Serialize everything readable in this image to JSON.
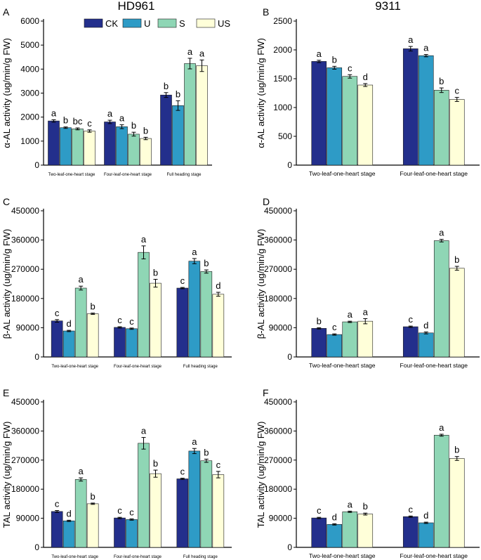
{
  "legend": {
    "entries": [
      {
        "label": "CK",
        "color": "#232F8C"
      },
      {
        "label": "U",
        "color": "#2E9BC6"
      },
      {
        "label": "S",
        "color": "#8FD6B5"
      },
      {
        "label": "US",
        "color": "#FFFFD9"
      }
    ]
  },
  "chart_data": [
    {
      "panel": "A",
      "type": "bar",
      "title": "HD961",
      "ylabel": "α-AL  activity (ug/min/g FW)",
      "ylim": [
        0,
        6000
      ],
      "yticks": [
        0,
        1000,
        2000,
        3000,
        4000,
        5000,
        6000
      ],
      "categories": [
        "Two-leaf-one-heart stage",
        "Four-leaf-one-heart stage",
        "Full heading stage"
      ],
      "series": [
        {
          "name": "CK",
          "values": [
            1840,
            1800,
            2920
          ],
          "errors": [
            50,
            70,
            100
          ],
          "letters": [
            "a",
            "a",
            "b"
          ]
        },
        {
          "name": "U",
          "values": [
            1560,
            1600,
            2480
          ],
          "errors": [
            30,
            80,
            200
          ],
          "letters": [
            "b",
            "a",
            "b"
          ]
        },
        {
          "name": "S",
          "values": [
            1510,
            1290,
            4230
          ],
          "errors": [
            40,
            80,
            220
          ],
          "letters": [
            "bc",
            "b",
            "a"
          ]
        },
        {
          "name": "US",
          "values": [
            1420,
            1110,
            4140
          ],
          "errors": [
            50,
            50,
            240
          ],
          "letters": [
            "c",
            "b",
            "a"
          ]
        }
      ]
    },
    {
      "panel": "B",
      "type": "bar",
      "title": "9311",
      "ylabel": "α-AL  activity (ug/min/g FW)",
      "ylim": [
        0,
        2500
      ],
      "yticks": [
        0,
        500,
        1000,
        1500,
        2000,
        2500
      ],
      "categories": [
        "Two-leaf-one-heart stage",
        "Four-leaf-one-heart stage"
      ],
      "series": [
        {
          "name": "CK",
          "values": [
            1800,
            2020
          ],
          "errors": [
            20,
            40
          ],
          "letters": [
            "a",
            "a"
          ]
        },
        {
          "name": "U",
          "values": [
            1690,
            1900
          ],
          "errors": [
            25,
            20
          ],
          "letters": [
            "b",
            "a"
          ]
        },
        {
          "name": "S",
          "values": [
            1540,
            1300
          ],
          "errors": [
            30,
            40
          ],
          "letters": [
            "c",
            "b"
          ]
        },
        {
          "name": "US",
          "values": [
            1390,
            1140
          ],
          "errors": [
            25,
            35
          ],
          "letters": [
            "d",
            "c"
          ]
        }
      ]
    },
    {
      "panel": "C",
      "type": "bar",
      "title": "",
      "ylabel": "β-AL activity (ug/min/g FW)",
      "ylim": [
        0,
        450000
      ],
      "yticks": [
        0,
        90000,
        180000,
        270000,
        360000,
        450000
      ],
      "categories": [
        "Two-leaf-one-heart stage",
        "Four-leaf-one-heart stage",
        "Full heading stage"
      ],
      "series": [
        {
          "name": "CK",
          "values": [
            111000,
            91000,
            212000
          ],
          "errors": [
            4000,
            2000,
            2000
          ],
          "letters": [
            "c",
            "c",
            "c"
          ]
        },
        {
          "name": "U",
          "values": [
            80000,
            87000,
            295000
          ],
          "errors": [
            2000,
            2000,
            8000
          ],
          "letters": [
            "d",
            "c",
            "a"
          ]
        },
        {
          "name": "S",
          "values": [
            212000,
            322000,
            263000
          ],
          "errors": [
            6000,
            20000,
            5000
          ],
          "letters": [
            "a",
            "a",
            "b"
          ]
        },
        {
          "name": "US",
          "values": [
            133000,
            227000,
            193000
          ],
          "errors": [
            2000,
            12000,
            6000
          ],
          "letters": [
            "b",
            "b",
            "d"
          ]
        }
      ]
    },
    {
      "panel": "D",
      "type": "bar",
      "title": "",
      "ylabel": "β-AL activity (ug/min/g FW)",
      "ylim": [
        0,
        450000
      ],
      "yticks": [
        0,
        90000,
        180000,
        270000,
        360000,
        450000
      ],
      "categories": [
        "Two-leaf-one-heart stage",
        "Four-leaf-one-heart stage"
      ],
      "series": [
        {
          "name": "CK",
          "values": [
            88000,
            93000
          ],
          "errors": [
            2000,
            2000
          ],
          "letters": [
            "b",
            "c"
          ]
        },
        {
          "name": "U",
          "values": [
            69000,
            74000
          ],
          "errors": [
            2000,
            3000
          ],
          "letters": [
            "c",
            "d"
          ]
        },
        {
          "name": "S",
          "values": [
            108000,
            358000
          ],
          "errors": [
            2000,
            4000
          ],
          "letters": [
            "a",
            "a"
          ]
        },
        {
          "name": "US",
          "values": [
            110000,
            273000
          ],
          "errors": [
            8000,
            6000
          ],
          "letters": [
            "a",
            "b"
          ]
        }
      ]
    },
    {
      "panel": "E",
      "type": "bar",
      "title": "",
      "ylabel": "TAL activity (ug/min/g FW)",
      "ylim": [
        0,
        450000
      ],
      "yticks": [
        0,
        90000,
        180000,
        270000,
        360000,
        450000
      ],
      "categories": [
        "Two-leaf-one-heart stage",
        "Four-leaf-one-heart stage",
        "Full heading stage"
      ],
      "series": [
        {
          "name": "CK",
          "values": [
            111000,
            91000,
            212000
          ],
          "errors": [
            3000,
            2000,
            2000
          ],
          "letters": [
            "c",
            "c",
            "c"
          ]
        },
        {
          "name": "U",
          "values": [
            82000,
            86000,
            298000
          ],
          "errors": [
            2000,
            2000,
            8000
          ],
          "letters": [
            "d",
            "c",
            "a"
          ]
        },
        {
          "name": "S",
          "values": [
            210000,
            322000,
            268000
          ],
          "errors": [
            5000,
            18000,
            5000
          ],
          "letters": [
            "a",
            "a",
            "b"
          ]
        },
        {
          "name": "US",
          "values": [
            135000,
            228000,
            225000
          ],
          "errors": [
            2000,
            11000,
            10000
          ],
          "letters": [
            "b",
            "b",
            "c"
          ]
        }
      ]
    },
    {
      "panel": "F",
      "type": "bar",
      "title": "",
      "ylabel": "TAL activity (ug/min/g FW)",
      "ylim": [
        0,
        450000
      ],
      "yticks": [
        0,
        90000,
        180000,
        270000,
        360000,
        450000
      ],
      "categories": [
        "Two-leaf-one-heart stage",
        "Four-leaf-one-heart stage"
      ],
      "series": [
        {
          "name": "CK",
          "values": [
            91000,
            95000
          ],
          "errors": [
            2000,
            2000
          ],
          "letters": [
            "c",
            "c"
          ]
        },
        {
          "name": "U",
          "values": [
            71000,
            76000
          ],
          "errors": [
            2000,
            2000
          ],
          "letters": [
            "d",
            "d"
          ]
        },
        {
          "name": "S",
          "values": [
            110000,
            347000
          ],
          "errors": [
            2000,
            3000
          ],
          "letters": [
            "a",
            "a"
          ]
        },
        {
          "name": "US",
          "values": [
            103000,
            275000
          ],
          "errors": [
            3000,
            6000
          ],
          "letters": [
            "b",
            "b"
          ]
        }
      ]
    }
  ]
}
